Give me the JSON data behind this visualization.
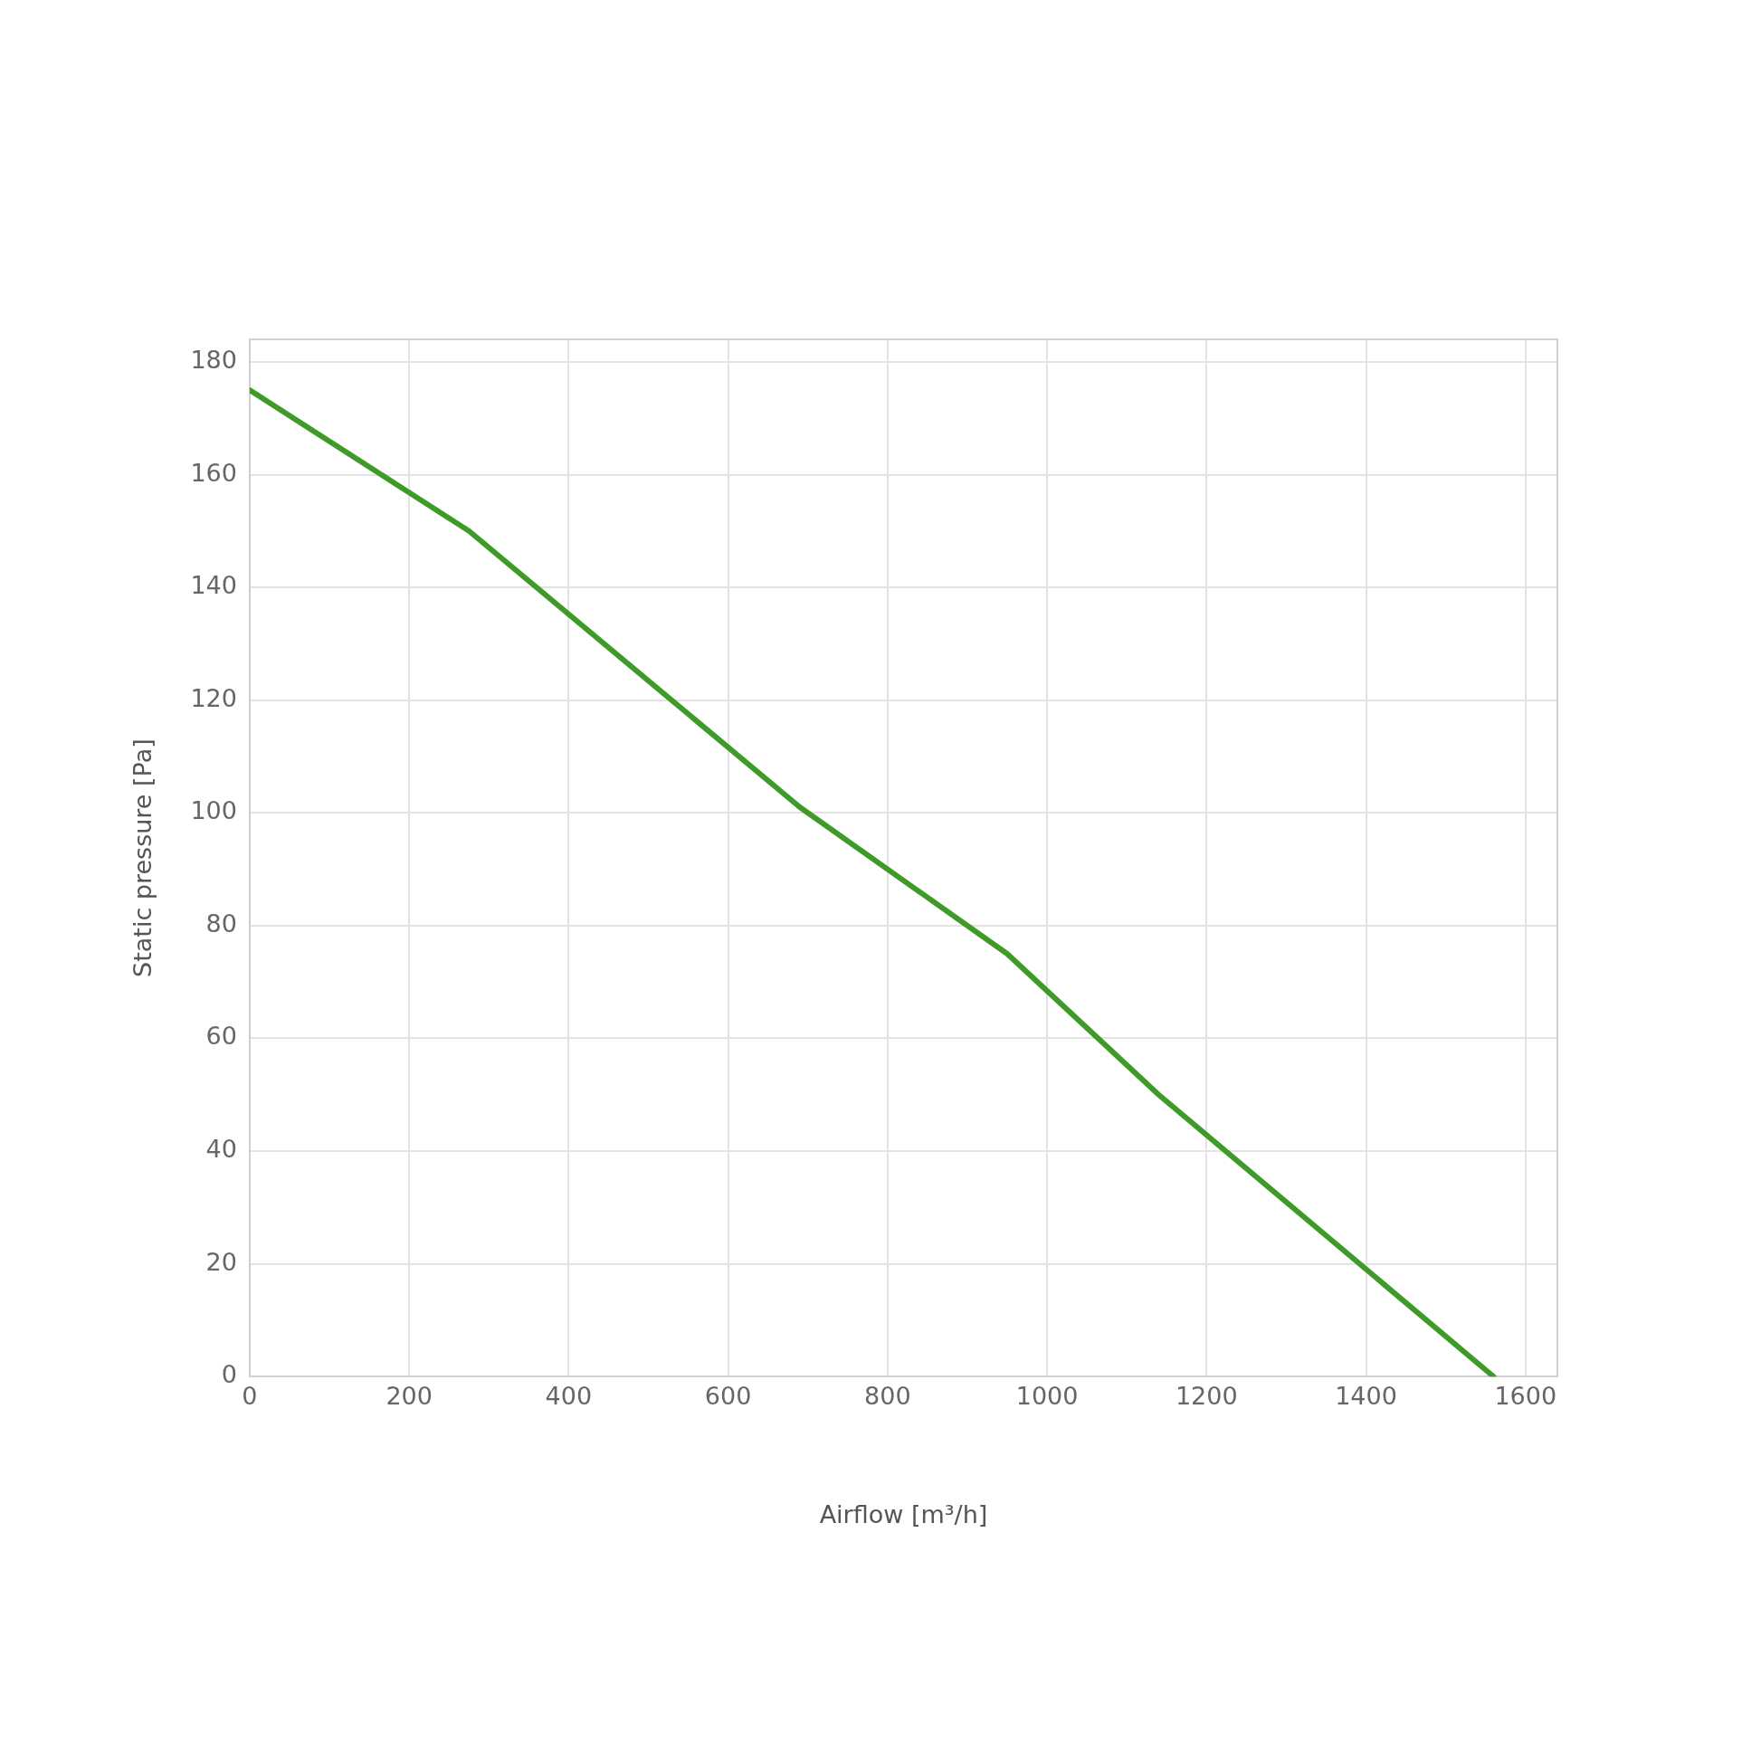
{
  "chart_data": {
    "type": "line",
    "xlabel": "Airflow [m³/h]",
    "ylabel": "Static pressure [Pa]",
    "x": [
      0,
      275,
      690,
      950,
      1140,
      1560
    ],
    "series": [
      {
        "color": "#3f9b27",
        "values": [
          175,
          150,
          101,
          75,
          50,
          0
        ]
      }
    ],
    "xlim": [
      0,
      1640
    ],
    "xticks": [
      0,
      200,
      400,
      600,
      800,
      1000,
      1200,
      1400,
      1600
    ],
    "ylim": [
      0,
      184
    ],
    "yticks": [
      0,
      20,
      40,
      60,
      80,
      100,
      120,
      140,
      160,
      180
    ],
    "grid": true,
    "legend": false,
    "marker": "none",
    "line_style": "solid"
  }
}
